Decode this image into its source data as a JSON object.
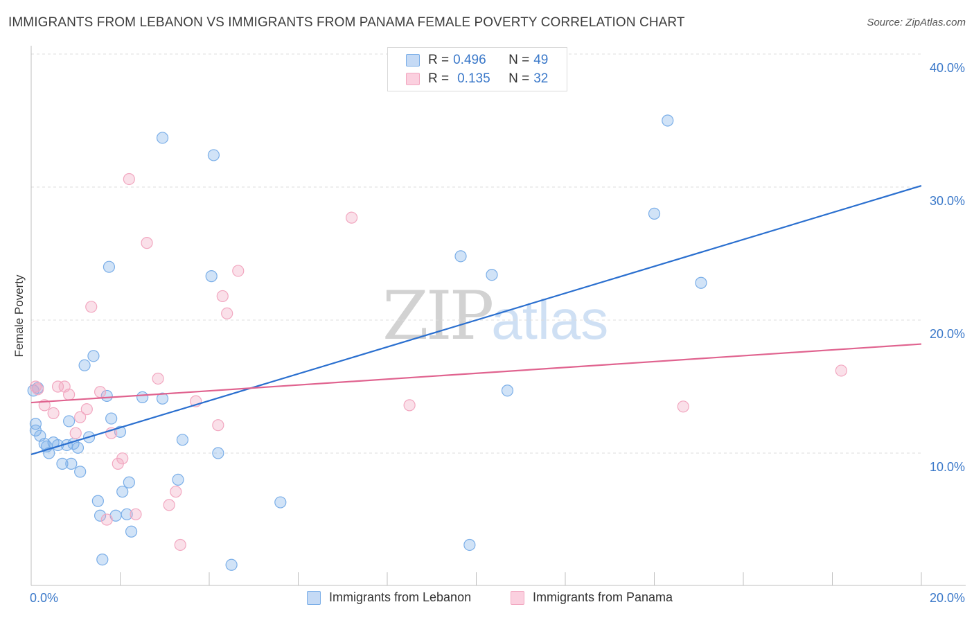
{
  "header": {
    "title": "IMMIGRANTS FROM LEBANON VS IMMIGRANTS FROM PANAMA FEMALE POVERTY CORRELATION CHART",
    "source": "Source: ZipAtlas.com"
  },
  "watermark": {
    "zip": "ZIP",
    "atlas": "atlas"
  },
  "legend": {
    "rows": [
      {
        "r_label": "R = ",
        "r_value": "0.496",
        "n_label": "N = ",
        "n_value": "49"
      },
      {
        "r_label": "R = ",
        "r_value": "0.135",
        "n_label": "N = ",
        "n_value": "32"
      }
    ]
  },
  "chart_data": {
    "type": "scatter",
    "title": "IMMIGRANTS FROM LEBANON VS IMMIGRANTS FROM PANAMA FEMALE POVERTY CORRELATION CHART",
    "xlabel": "",
    "ylabel": "Female Poverty",
    "xlim": [
      0,
      20
    ],
    "ylim": [
      0,
      40
    ],
    "x_tick_labels": [
      "0.0%",
      "20.0%"
    ],
    "y_ticks": [
      10,
      20,
      30,
      40
    ],
    "y_tick_labels": [
      "10.0%",
      "20.0%",
      "30.0%",
      "40.0%"
    ],
    "grid": true,
    "legend_position": "top-center",
    "series": [
      {
        "name": "Immigrants from Lebanon",
        "color": "#7aaee8",
        "line_color": "#2a6fcf",
        "r": 0.496,
        "n": 49,
        "trend": {
          "x": [
            0,
            20
          ],
          "y": [
            9.9,
            30.1
          ]
        },
        "points": [
          [
            0.1,
            12.2
          ],
          [
            0.1,
            11.7
          ],
          [
            0.2,
            11.3
          ],
          [
            0.3,
            10.7
          ],
          [
            0.35,
            10.5
          ],
          [
            0.4,
            10.0
          ],
          [
            0.5,
            10.8
          ],
          [
            0.6,
            10.6
          ],
          [
            0.7,
            9.2
          ],
          [
            0.8,
            10.6
          ],
          [
            0.85,
            12.4
          ],
          [
            0.9,
            9.2
          ],
          [
            0.95,
            10.7
          ],
          [
            1.05,
            10.4
          ],
          [
            1.1,
            8.6
          ],
          [
            1.2,
            16.6
          ],
          [
            1.3,
            11.2
          ],
          [
            1.4,
            17.3
          ],
          [
            1.5,
            6.4
          ],
          [
            1.55,
            5.3
          ],
          [
            1.6,
            2.0
          ],
          [
            1.7,
            14.3
          ],
          [
            1.75,
            24.0
          ],
          [
            1.8,
            12.6
          ],
          [
            1.9,
            5.3
          ],
          [
            2.0,
            11.6
          ],
          [
            2.05,
            7.1
          ],
          [
            2.15,
            5.4
          ],
          [
            2.2,
            7.8
          ],
          [
            2.25,
            4.1
          ],
          [
            2.5,
            14.2
          ],
          [
            2.95,
            33.7
          ],
          [
            2.95,
            14.1
          ],
          [
            3.3,
            8.0
          ],
          [
            3.4,
            11.0
          ],
          [
            4.05,
            23.3
          ],
          [
            4.1,
            32.4
          ],
          [
            4.2,
            10.0
          ],
          [
            4.5,
            1.6
          ],
          [
            5.6,
            6.3
          ],
          [
            9.65,
            24.8
          ],
          [
            9.85,
            3.1
          ],
          [
            10.35,
            23.4
          ],
          [
            10.7,
            14.7
          ],
          [
            14.0,
            28.0
          ],
          [
            14.3,
            35.0
          ],
          [
            15.05,
            22.8
          ],
          [
            0.05,
            14.7
          ],
          [
            0.15,
            14.9
          ]
        ]
      },
      {
        "name": "Immigrants from Panama",
        "color": "#f2a7c0",
        "line_color": "#e0638f",
        "r": 0.135,
        "n": 32,
        "trend": {
          "x": [
            0,
            20
          ],
          "y": [
            13.8,
            18.2
          ]
        },
        "points": [
          [
            0.1,
            15.0
          ],
          [
            0.15,
            14.8
          ],
          [
            0.3,
            13.6
          ],
          [
            0.5,
            13.0
          ],
          [
            0.6,
            15.0
          ],
          [
            0.75,
            15.0
          ],
          [
            0.85,
            14.4
          ],
          [
            1.0,
            11.5
          ],
          [
            1.1,
            12.7
          ],
          [
            1.25,
            13.3
          ],
          [
            1.35,
            21.0
          ],
          [
            1.55,
            14.6
          ],
          [
            1.7,
            5.0
          ],
          [
            1.8,
            11.5
          ],
          [
            1.95,
            9.2
          ],
          [
            2.05,
            9.6
          ],
          [
            2.2,
            30.6
          ],
          [
            2.35,
            5.4
          ],
          [
            2.6,
            25.8
          ],
          [
            2.85,
            15.6
          ],
          [
            3.1,
            6.1
          ],
          [
            3.25,
            7.1
          ],
          [
            3.35,
            3.1
          ],
          [
            3.7,
            13.9
          ],
          [
            4.2,
            12.1
          ],
          [
            4.3,
            21.8
          ],
          [
            4.4,
            20.5
          ],
          [
            4.65,
            23.7
          ],
          [
            7.2,
            27.7
          ],
          [
            8.5,
            13.6
          ],
          [
            14.65,
            13.5
          ],
          [
            18.2,
            16.2
          ]
        ]
      }
    ]
  }
}
